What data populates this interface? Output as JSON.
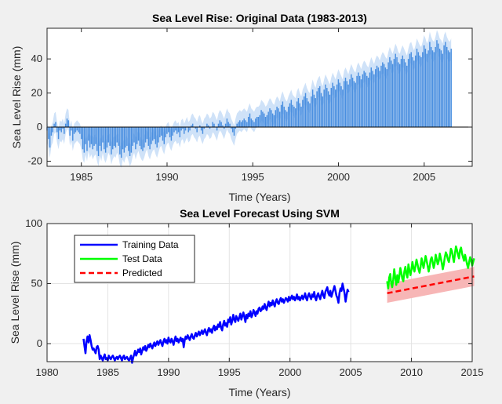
{
  "colors": {
    "figure_bg": "#f0f0f0",
    "axes_bg": "#ffffff",
    "grid": "#e3e3e3",
    "axis": "#262626",
    "band_top": "#cfe2f8",
    "bar_top": "#4a8fe0",
    "training": "#0000ff",
    "test": "#00ff00",
    "predicted": "#ff0000",
    "predicted_band": "#f7b6b6"
  },
  "chart_data": [
    {
      "type": "bar",
      "title": "Sea Level Rise: Original Data (1983-2013)",
      "xlabel": "Time (Years)",
      "ylabel": "Sea Level Rise (mm)",
      "xlim": [
        1983,
        2007.8
      ],
      "ylim": [
        -23,
        58
      ],
      "xticks": [
        1985,
        1990,
        1995,
        2000,
        2005
      ],
      "yticks": [
        -20,
        0,
        20,
        40
      ],
      "grid": false,
      "x_start": 1983.0,
      "x_step": 0.0833,
      "band_halfwidth": 6,
      "values": [
        -2,
        -7,
        -12,
        -5,
        -3,
        2,
        3,
        -3,
        -7,
        -2,
        -3,
        -1,
        -4,
        2,
        5,
        4,
        -5,
        -2,
        -8,
        -4,
        -3,
        -2,
        -3,
        -4,
        -7,
        -13,
        -15,
        -10,
        -14,
        -8,
        -12,
        -10,
        -13,
        -11,
        -10,
        -14,
        -17,
        -11,
        -14,
        -9,
        -13,
        -15,
        -12,
        -9,
        -11,
        -16,
        -13,
        -11,
        -12,
        -9,
        -11,
        -16,
        -18,
        -13,
        -15,
        -12,
        -11,
        -14,
        -17,
        -15,
        -11,
        -9,
        -13,
        -10,
        -8,
        -11,
        -13,
        -14,
        -12,
        -9,
        -7,
        -11,
        -13,
        -10,
        -8,
        -7,
        -10,
        -12,
        -9,
        -6,
        -5,
        -8,
        -10,
        -6,
        -4,
        -3,
        -6,
        -8,
        -5,
        -3,
        -2,
        -4,
        -3,
        -6,
        -2,
        -1,
        -4,
        -2,
        0,
        -3,
        -2,
        1,
        2,
        0,
        -1,
        -3,
        0,
        1,
        -2,
        -4,
        -1,
        0,
        2,
        1,
        -1,
        0,
        3,
        2,
        0,
        -2,
        2,
        4,
        3,
        1,
        -1,
        2,
        5,
        3,
        2,
        -1,
        -3,
        -5,
        -1,
        2,
        3,
        4,
        3,
        4,
        5,
        4,
        3,
        6,
        8,
        5,
        4,
        3,
        5,
        6,
        6,
        7,
        10,
        9,
        8,
        6,
        7,
        9,
        11,
        10,
        8,
        7,
        10,
        12,
        11,
        9,
        13,
        15,
        12,
        10,
        9,
        12,
        14,
        16,
        13,
        12,
        11,
        15,
        17,
        14,
        12,
        16,
        18,
        20,
        17,
        15,
        14,
        18,
        22,
        19,
        17,
        21,
        23,
        24,
        20,
        18,
        22,
        25,
        23,
        21,
        19,
        23,
        26,
        24,
        22,
        25,
        28,
        26,
        24,
        22,
        27,
        29,
        27,
        25,
        28,
        31,
        29,
        27,
        26,
        30,
        32,
        30,
        28,
        31,
        33,
        32,
        30,
        29,
        32,
        35,
        33,
        31,
        34,
        36,
        35,
        33,
        36,
        38,
        37,
        35,
        34,
        38,
        41,
        39,
        37,
        40,
        43,
        41,
        38,
        37,
        40,
        42,
        40,
        38,
        36,
        40,
        43,
        44,
        41,
        39,
        42,
        46,
        44,
        42,
        41,
        44,
        48,
        46,
        43,
        45,
        50,
        47,
        45,
        44,
        47,
        51,
        49,
        46,
        45,
        43,
        48,
        50,
        47,
        45,
        44,
        46
      ]
    },
    {
      "type": "line",
      "title": "Sea Level Forecast Using SVM",
      "xlabel": "Time (Years)",
      "ylabel": "Sea Level Rise (mm)",
      "xlim": [
        1980,
        2015
      ],
      "ylim": [
        -15,
        100
      ],
      "xticks": [
        1980,
        1985,
        1990,
        1995,
        2000,
        2005,
        2010,
        2015
      ],
      "yticks": [
        0,
        50,
        100
      ],
      "grid": true,
      "legend_position": "top-left",
      "series": [
        {
          "name": "Training Data",
          "x_start": 1983.0,
          "x_step": 0.0833,
          "values": [
            4,
            -2,
            -8,
            2,
            6,
            1,
            7,
            3,
            -2,
            -5,
            -4,
            -6,
            -8,
            -3,
            -2,
            -5,
            -13,
            -10,
            -12,
            -14,
            -11,
            -9,
            -13,
            -12,
            -14,
            -10,
            -12,
            -13,
            -11,
            -10,
            -12,
            -14,
            -12,
            -11,
            -13,
            -11,
            -10,
            -12,
            -14,
            -11,
            -10,
            -13,
            -12,
            -11,
            -13,
            -14,
            -12,
            -10,
            -16,
            -12,
            -9,
            -6,
            -10,
            -8,
            -5,
            -7,
            -4,
            -9,
            -6,
            -3,
            -5,
            -2,
            -6,
            -4,
            -1,
            -3,
            0,
            -2,
            -4,
            -1,
            1,
            -2,
            0,
            2,
            -1,
            1,
            3,
            0,
            -2,
            2,
            4,
            1,
            3,
            0,
            5,
            2,
            1,
            4,
            2,
            -1,
            3,
            6,
            2,
            4,
            1,
            3,
            5,
            2,
            4,
            -3,
            3,
            6,
            4,
            7,
            5,
            3,
            6,
            8,
            5,
            4,
            7,
            9,
            6,
            8,
            10,
            7,
            9,
            11,
            8,
            10,
            12,
            9,
            7,
            11,
            13,
            10,
            12,
            9,
            13,
            15,
            11,
            14,
            12,
            16,
            14,
            18,
            13,
            11,
            16,
            19,
            15,
            17,
            14,
            20,
            18,
            22,
            16,
            19,
            24,
            20,
            18,
            23,
            21,
            19,
            22,
            25,
            20,
            23,
            26,
            22,
            18,
            24,
            21,
            25,
            23,
            27,
            22,
            24,
            28,
            26,
            23,
            27,
            25,
            29,
            30,
            27,
            28,
            31,
            29,
            33,
            30,
            28,
            32,
            35,
            31,
            34,
            32,
            36,
            33,
            31,
            35,
            37,
            34,
            33,
            36,
            38,
            35,
            37,
            34,
            36,
            38,
            37,
            35,
            39,
            36,
            38,
            40,
            37,
            39,
            36,
            38,
            41,
            37,
            39,
            36,
            38,
            40,
            37,
            39,
            42,
            38,
            36,
            40,
            42,
            39,
            37,
            41,
            39,
            43,
            38,
            36,
            40,
            42,
            39,
            37,
            41,
            44,
            40,
            38,
            43,
            45,
            47,
            42,
            40,
            44,
            39,
            42,
            45,
            48,
            44,
            40,
            38,
            34,
            42,
            46,
            44,
            50,
            46,
            42,
            35,
            40,
            45,
            43
          ]
        },
        {
          "name": "Test Data",
          "x_start": 2008.0,
          "x_step": 0.0833,
          "values": [
            52,
            46,
            55,
            58,
            50,
            47,
            53,
            62,
            55,
            49,
            57,
            51,
            56,
            63,
            59,
            54,
            52,
            60,
            64,
            58,
            55,
            66,
            61,
            57,
            62,
            68,
            63,
            60,
            65,
            70,
            66,
            62,
            59,
            64,
            71,
            67,
            63,
            68,
            73,
            69,
            65,
            60,
            64,
            70,
            72,
            68,
            63,
            67,
            74,
            70,
            66,
            69,
            75,
            71,
            67,
            62,
            66,
            72,
            76,
            74,
            70,
            68,
            73,
            79,
            77,
            72,
            68,
            75,
            81,
            78,
            74,
            71,
            78,
            80,
            75,
            72,
            69,
            74,
            70,
            66,
            63,
            68,
            72,
            69,
            65,
            68,
            71
          ]
        },
        {
          "name": "Predicted",
          "x_start": 2008.0,
          "x_step": 0.0833,
          "values": [
            42,
            56
          ],
          "band_halfwidth": 8
        }
      ]
    }
  ]
}
